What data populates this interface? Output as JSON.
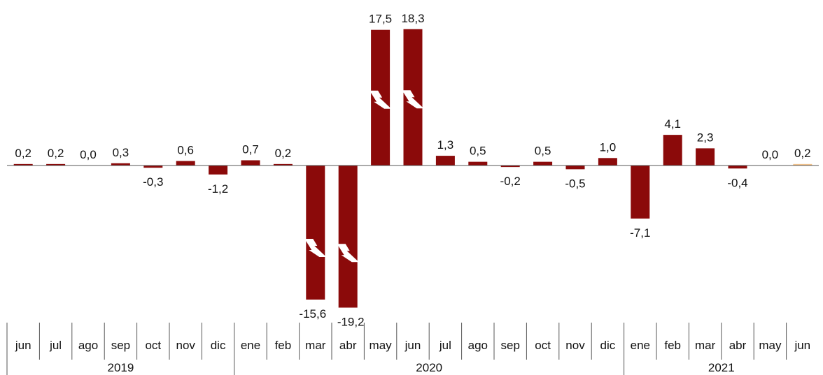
{
  "chart_data": {
    "type": "bar",
    "title": "",
    "xlabel": "",
    "ylabel": "",
    "categories": [
      "jun",
      "jul",
      "ago",
      "sep",
      "oct",
      "nov",
      "dic",
      "ene",
      "feb",
      "mar",
      "abr",
      "may",
      "jun",
      "jul",
      "ago",
      "sep",
      "oct",
      "nov",
      "dic",
      "ene",
      "feb",
      "mar",
      "abr",
      "may",
      "jun"
    ],
    "values": [
      0.2,
      0.2,
      0.0,
      0.3,
      -0.3,
      0.6,
      -1.2,
      0.7,
      0.2,
      -15.6,
      -19.2,
      17.5,
      18.3,
      1.3,
      0.5,
      -0.2,
      0.5,
      -0.5,
      1.0,
      -7.1,
      4.1,
      2.3,
      -0.4,
      0.0,
      0.2
    ],
    "value_labels": [
      "0,2",
      "0,2",
      "0,0",
      "0,3",
      "-0,3",
      "0,6",
      "-1,2",
      "0,7",
      "0,2",
      "-15,6",
      "-19,2",
      "17,5",
      "18,3",
      "1,3",
      "0,5",
      "-0,2",
      "0,5",
      "-0,5",
      "1,0",
      "-7,1",
      "4,1",
      "2,3",
      "-0,4",
      "0,0",
      "0,2"
    ],
    "broken_bars": [
      9,
      10,
      11,
      12
    ],
    "highlight_last": true,
    "years": [
      {
        "label": "2019",
        "start": 0,
        "end": 6
      },
      {
        "label": "2020",
        "start": 7,
        "end": 18
      },
      {
        "label": "2021",
        "start": 19,
        "end": 24
      }
    ],
    "colors": {
      "bar": "#8b0a0a",
      "highlight": "#f2c38c",
      "axis": "#555555"
    },
    "grid": false,
    "legend": "none"
  }
}
